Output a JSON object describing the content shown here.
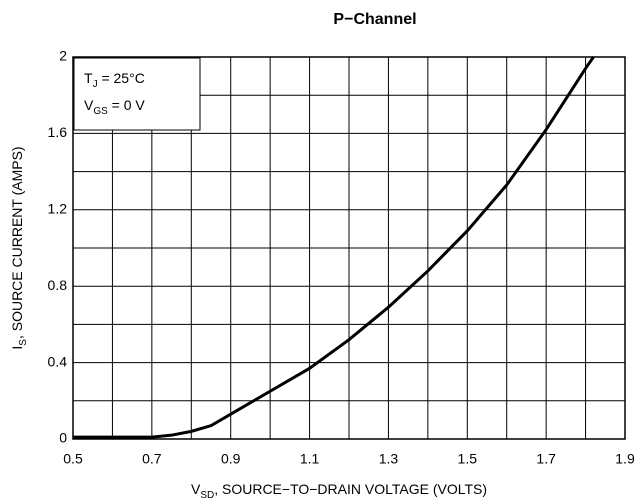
{
  "chart_data": {
    "type": "line",
    "title": "P−Channel",
    "x_label": [
      {
        "text": "V"
      },
      {
        "text": "SD",
        "sub": true
      },
      {
        "text": ", SOURCE−TO−DRAIN VOLTAGE (VOLTS)"
      }
    ],
    "y_label": [
      {
        "text": "I"
      },
      {
        "text": "S",
        "sub": true
      },
      {
        "text": ", SOURCE CURRENT (AMPS)"
      }
    ],
    "annotations": [
      [
        {
          "text": "T"
        },
        {
          "text": "J",
          "sub": true
        },
        {
          "text": " = 25°C"
        }
      ],
      [
        {
          "text": "V"
        },
        {
          "text": "GS",
          "sub": true
        },
        {
          "text": " = 0 V"
        }
      ]
    ],
    "x": [
      0.5,
      0.6,
      0.7,
      0.75,
      0.8,
      0.85,
      0.9,
      0.95,
      1.0,
      1.1,
      1.2,
      1.3,
      1.4,
      1.5,
      1.6,
      1.7,
      1.8,
      1.82
    ],
    "values": [
      0.01,
      0.01,
      0.01,
      0.02,
      0.04,
      0.07,
      0.13,
      0.19,
      0.25,
      0.37,
      0.52,
      0.69,
      0.88,
      1.09,
      1.33,
      1.62,
      1.94,
      2.0
    ],
    "color": "#000000",
    "xlim": [
      0.5,
      1.9
    ],
    "xticks": [
      0.5,
      0.7,
      0.9,
      1.1,
      1.3,
      1.5,
      1.7,
      1.9
    ],
    "ylim": [
      0,
      2
    ],
    "yticks": [
      0,
      0.4,
      0.8,
      1.2,
      1.6,
      2
    ],
    "xgrid": [
      0.6,
      0.8,
      1.0,
      1.2,
      1.4,
      1.6,
      1.8
    ],
    "ygrid": [
      0.2,
      0.6,
      1.0,
      1.4,
      1.8
    ],
    "grid": true
  }
}
